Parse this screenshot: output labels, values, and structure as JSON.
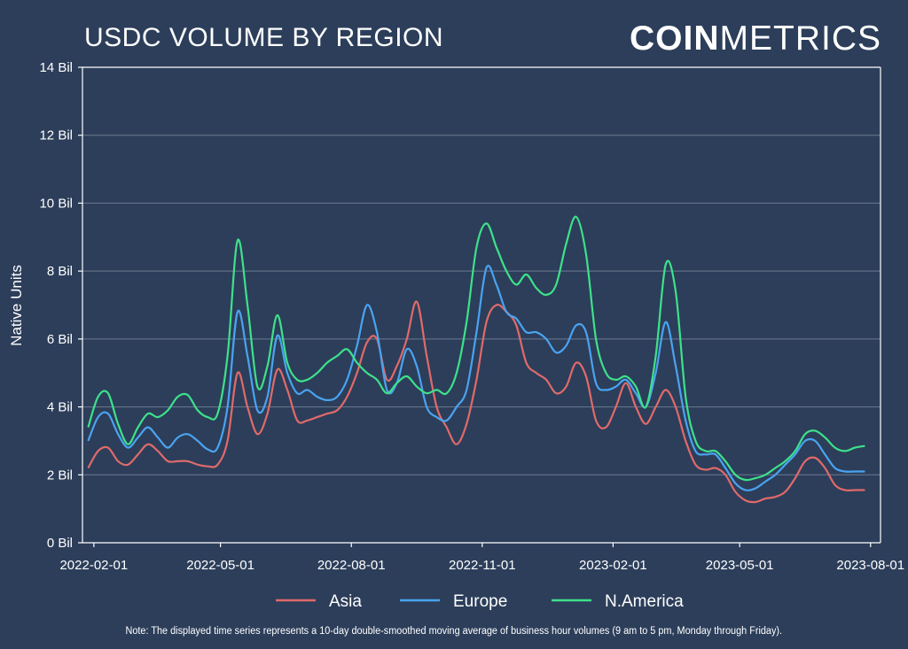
{
  "title": "USDC VOLUME BY REGION",
  "logo": {
    "bold": "COIN",
    "light": "METRICS"
  },
  "note": "Note: The displayed time series represents a 10-day double-smoothed moving average of business hour volumes (9 am to 5 pm, Monday through Friday).",
  "colors": {
    "background": "#2c3e5a",
    "grid": "#6b7a90",
    "axis": "#ffffff"
  },
  "chart_data": {
    "type": "line",
    "title": "USDC VOLUME BY REGION",
    "xlabel": "",
    "ylabel": "Native Units",
    "ylim": [
      0,
      14
    ],
    "xlim": [
      "2022-01-24",
      "2023-08-08"
    ],
    "yticks": [
      0,
      2,
      4,
      6,
      8,
      10,
      12,
      14
    ],
    "ytick_labels": [
      "0 Bil",
      "2 Bil",
      "4 Bil",
      "6 Bil",
      "8 Bil",
      "10 Bil",
      "12 Bil",
      "14 Bil"
    ],
    "xticks": [
      "2022-02-01",
      "2022-05-01",
      "2022-08-01",
      "2022-11-01",
      "2023-02-01",
      "2023-05-01",
      "2023-08-01"
    ],
    "grid": "horizontal",
    "legend_position": "bottom",
    "x": [
      "2022-01-28",
      "2022-02-04",
      "2022-02-11",
      "2022-02-18",
      "2022-02-25",
      "2022-03-04",
      "2022-03-11",
      "2022-03-18",
      "2022-03-25",
      "2022-04-01",
      "2022-04-08",
      "2022-04-15",
      "2022-04-22",
      "2022-04-29",
      "2022-05-06",
      "2022-05-13",
      "2022-05-20",
      "2022-05-27",
      "2022-06-03",
      "2022-06-10",
      "2022-06-17",
      "2022-06-24",
      "2022-07-01",
      "2022-07-08",
      "2022-07-15",
      "2022-07-22",
      "2022-07-29",
      "2022-08-05",
      "2022-08-12",
      "2022-08-19",
      "2022-08-26",
      "2022-09-02",
      "2022-09-09",
      "2022-09-16",
      "2022-09-23",
      "2022-09-30",
      "2022-10-07",
      "2022-10-14",
      "2022-10-21",
      "2022-10-28",
      "2022-11-04",
      "2022-11-11",
      "2022-11-18",
      "2022-11-25",
      "2022-12-02",
      "2022-12-09",
      "2022-12-16",
      "2022-12-23",
      "2022-12-30",
      "2023-01-06",
      "2023-01-13",
      "2023-01-20",
      "2023-01-27",
      "2023-02-03",
      "2023-02-10",
      "2023-02-17",
      "2023-02-24",
      "2023-03-03",
      "2023-03-10",
      "2023-03-17",
      "2023-03-24",
      "2023-03-31",
      "2023-04-07",
      "2023-04-14",
      "2023-04-21",
      "2023-04-28",
      "2023-05-05",
      "2023-05-12",
      "2023-05-19",
      "2023-05-26",
      "2023-06-02",
      "2023-06-09",
      "2023-06-16",
      "2023-06-23",
      "2023-06-30",
      "2023-07-07",
      "2023-07-14",
      "2023-07-21",
      "2023-07-28"
    ],
    "series": [
      {
        "name": "Asia",
        "color": "#e06a6a",
        "values": [
          2.2,
          2.7,
          2.8,
          2.4,
          2.3,
          2.6,
          2.9,
          2.7,
          2.4,
          2.4,
          2.4,
          2.3,
          2.25,
          2.3,
          3.0,
          5.0,
          4.0,
          3.2,
          3.8,
          5.1,
          4.5,
          3.6,
          3.6,
          3.7,
          3.8,
          3.9,
          4.3,
          5.0,
          5.9,
          6.0,
          4.8,
          5.2,
          6.0,
          7.1,
          5.5,
          4.0,
          3.4,
          2.9,
          3.5,
          4.8,
          6.5,
          7.0,
          6.8,
          6.4,
          5.3,
          5.0,
          4.8,
          4.4,
          4.6,
          5.3,
          4.9,
          3.6,
          3.4,
          4.0,
          4.7,
          4.0,
          3.5,
          4.0,
          4.5,
          4.0,
          3.0,
          2.3,
          2.15,
          2.2,
          2.0,
          1.5,
          1.25,
          1.2,
          1.3,
          1.35,
          1.5,
          1.9,
          2.4,
          2.5,
          2.2,
          1.7,
          1.55,
          1.55,
          1.55
        ]
      },
      {
        "name": "Europe",
        "color": "#4aa3f0",
        "values": [
          3.0,
          3.7,
          3.8,
          3.2,
          2.8,
          3.1,
          3.4,
          3.1,
          2.8,
          3.1,
          3.2,
          3.0,
          2.75,
          2.8,
          4.0,
          6.8,
          5.5,
          3.9,
          4.3,
          6.1,
          5.0,
          4.4,
          4.5,
          4.3,
          4.2,
          4.3,
          4.8,
          5.8,
          7.0,
          6.2,
          4.5,
          4.7,
          5.7,
          5.2,
          4.0,
          3.7,
          3.6,
          4.0,
          4.5,
          6.2,
          8.1,
          7.6,
          6.8,
          6.6,
          6.2,
          6.2,
          6.0,
          5.6,
          5.8,
          6.4,
          6.2,
          4.7,
          4.5,
          4.6,
          4.8,
          4.4,
          4.0,
          5.0,
          6.5,
          5.2,
          3.6,
          2.7,
          2.6,
          2.6,
          2.2,
          1.75,
          1.55,
          1.6,
          1.8,
          2.0,
          2.3,
          2.6,
          3.0,
          3.0,
          2.6,
          2.2,
          2.1,
          2.1,
          2.1
        ]
      },
      {
        "name": "N.America",
        "color": "#3ee18a",
        "values": [
          3.4,
          4.3,
          4.4,
          3.5,
          2.9,
          3.4,
          3.8,
          3.7,
          3.9,
          4.3,
          4.35,
          3.9,
          3.7,
          3.8,
          5.5,
          8.9,
          7.0,
          4.6,
          5.2,
          6.7,
          5.3,
          4.8,
          4.8,
          5.0,
          5.3,
          5.5,
          5.7,
          5.3,
          5.0,
          4.8,
          4.4,
          4.7,
          4.9,
          4.6,
          4.4,
          4.5,
          4.4,
          5.0,
          6.5,
          8.7,
          9.4,
          8.7,
          8.0,
          7.6,
          7.9,
          7.5,
          7.3,
          7.6,
          8.8,
          9.6,
          8.5,
          6.0,
          5.0,
          4.8,
          4.9,
          4.6,
          4.0,
          5.5,
          8.2,
          7.4,
          4.3,
          3.0,
          2.7,
          2.7,
          2.4,
          2.0,
          1.85,
          1.9,
          2.0,
          2.2,
          2.4,
          2.7,
          3.2,
          3.3,
          3.1,
          2.8,
          2.7,
          2.8,
          2.85
        ]
      }
    ]
  }
}
